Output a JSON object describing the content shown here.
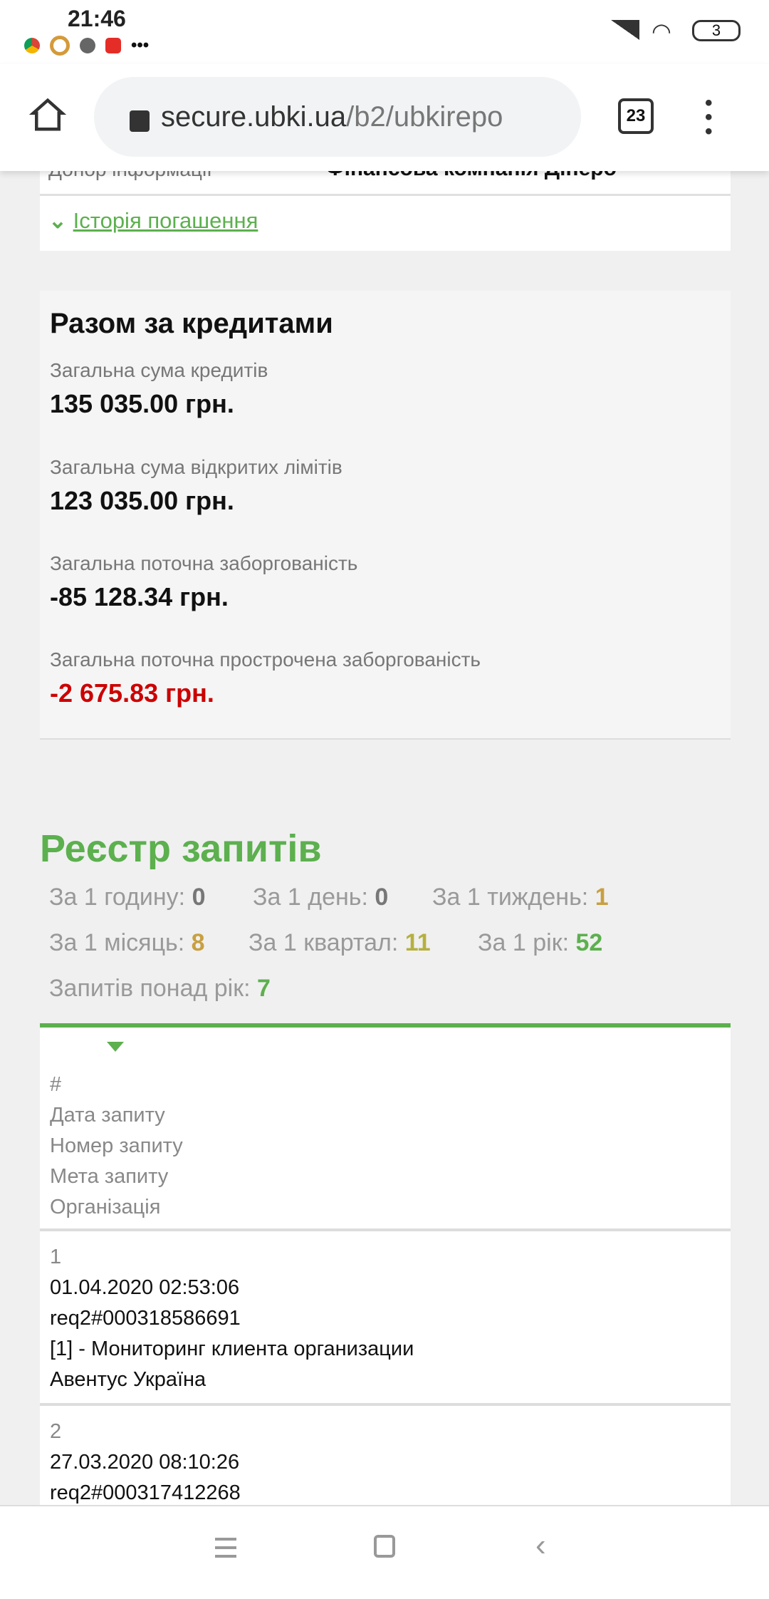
{
  "status": {
    "time": "21:46",
    "battery": "3",
    "more": "•••"
  },
  "browser": {
    "host": "secure.ubki.ua",
    "path": "/b2/ubkirepo",
    "tabs_count": "23"
  },
  "card_partial": {
    "label": "Донор інформації",
    "value": "Фінансова компанія Дінеро",
    "link": "Історія погашення"
  },
  "totals": {
    "title": "Разом за кредитами",
    "items": [
      {
        "label": "Загальна сума кредитів",
        "value": "135 035.00 грн."
      },
      {
        "label": "Загальна сума відкритих лімітів",
        "value": "123 035.00 грн."
      },
      {
        "label": "Загальна поточна заборгованість",
        "value": "-85 128.34 грн."
      },
      {
        "label": "Загальна поточна прострочена заборгованість",
        "value": "-2 675.83 грн.",
        "color": "#cc0000"
      }
    ]
  },
  "registry": {
    "title": "Реєстр запитів",
    "stats": [
      {
        "label": "За 1 годину: ",
        "value": "0",
        "color": "#777777"
      },
      {
        "label": "За 1 день: ",
        "value": "0",
        "color": "#777777"
      },
      {
        "label": "За 1 тиждень: ",
        "value": "1",
        "color": "#c8a040"
      },
      {
        "label": "За 1 місяць: ",
        "value": "8",
        "color": "#c8a040"
      },
      {
        "label": "За 1 квартал: ",
        "value": "11",
        "color": "#b5b040"
      },
      {
        "label": "За 1 рік: ",
        "value": "52",
        "color": "#5cb04e"
      },
      {
        "label": "Запитів понад рік: ",
        "value": "7",
        "color": "#5cb04e"
      }
    ],
    "headers": [
      "#",
      "Дата запиту",
      "Номер запиту",
      "Мета запиту",
      "Організація"
    ],
    "rows": [
      {
        "n": "1",
        "date": "01.04.2020 02:53:06",
        "number": "req2#000318586691",
        "purpose": "[1] - Мониторинг клиента организации",
        "org": "Авентус Україна"
      },
      {
        "n": "2",
        "date": "27.03.2020 08:10:26",
        "number": "req2#000317412268"
      }
    ]
  },
  "colors": {
    "accent": "#5cb04e",
    "negative": "#cc0000"
  }
}
